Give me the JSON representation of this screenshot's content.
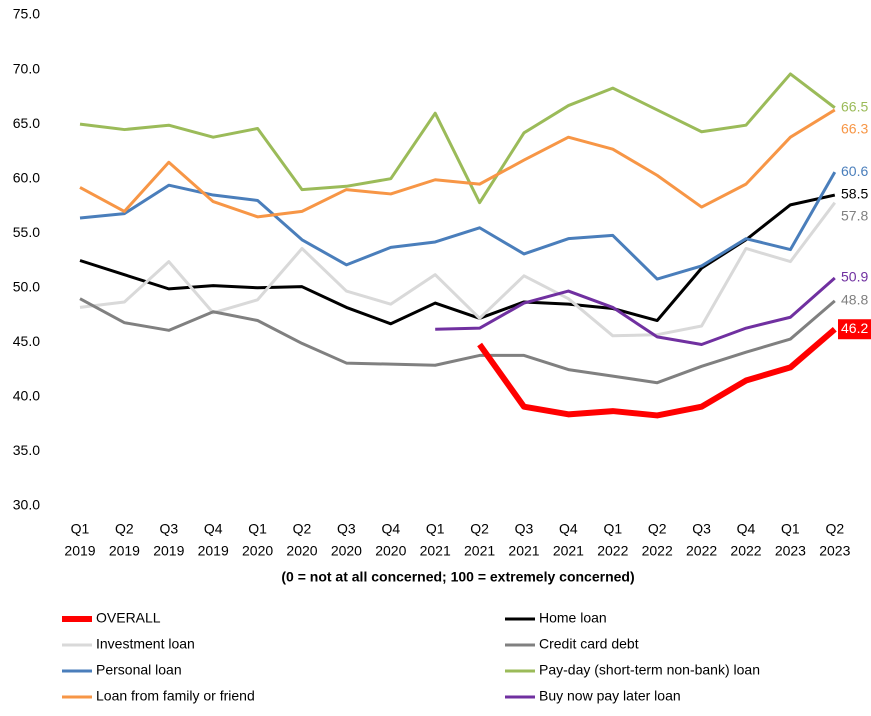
{
  "chart_data": {
    "type": "line",
    "x_label": "(0 = not at all concerned; 100 = extremely concerned)",
    "categories": [
      [
        "Q1",
        "2019"
      ],
      [
        "Q2",
        "2019"
      ],
      [
        "Q3",
        "2019"
      ],
      [
        "Q4",
        "2019"
      ],
      [
        "Q1",
        "2020"
      ],
      [
        "Q2",
        "2020"
      ],
      [
        "Q3",
        "2020"
      ],
      [
        "Q4",
        "2020"
      ],
      [
        "Q1",
        "2021"
      ],
      [
        "Q2",
        "2021"
      ],
      [
        "Q3",
        "2021"
      ],
      [
        "Q4",
        "2021"
      ],
      [
        "Q1",
        "2022"
      ],
      [
        "Q2",
        "2022"
      ],
      [
        "Q3",
        "2022"
      ],
      [
        "Q4",
        "2022"
      ],
      [
        "Q1",
        "2023"
      ],
      [
        "Q2",
        "2023"
      ]
    ],
    "ylim": [
      30,
      75
    ],
    "yticks": [
      {
        "value": 30,
        "label": "30.0"
      },
      {
        "value": 35,
        "label": "35.0"
      },
      {
        "value": 40,
        "label": "40.0"
      },
      {
        "value": 45,
        "label": "45.0"
      },
      {
        "value": 50,
        "label": "50.0"
      },
      {
        "value": 55,
        "label": "55.0"
      },
      {
        "value": 60,
        "label": "60.0"
      },
      {
        "value": 65,
        "label": "65.0"
      },
      {
        "value": 70,
        "label": "70.0"
      },
      {
        "value": 75,
        "label": "75.0"
      }
    ],
    "grid": false,
    "series": [
      {
        "name": "OVERALL",
        "color": "#ff0000",
        "width": 6,
        "values": [
          null,
          null,
          null,
          null,
          null,
          null,
          null,
          null,
          null,
          44.8,
          39.1,
          38.4,
          38.7,
          38.3,
          39.1,
          41.5,
          42.7,
          46.2
        ]
      },
      {
        "name": "Home loan",
        "color": "#000000",
        "width": 3,
        "values": [
          52.5,
          51.2,
          49.9,
          50.2,
          50.0,
          50.1,
          48.2,
          46.7,
          48.6,
          47.2,
          48.7,
          48.5,
          48.1,
          47.0,
          51.8,
          54.4,
          57.6,
          58.5
        ]
      },
      {
        "name": "Investment loan",
        "color": "#d9d9d9",
        "width": 3,
        "values": [
          48.2,
          48.7,
          52.4,
          47.7,
          48.9,
          53.6,
          49.7,
          48.5,
          51.2,
          47.2,
          51.1,
          49.0,
          45.6,
          45.7,
          46.5,
          53.6,
          52.4,
          57.8
        ]
      },
      {
        "name": "Credit card debt",
        "color": "#808080",
        "width": 3,
        "values": [
          49.0,
          46.8,
          46.1,
          47.8,
          47.0,
          44.9,
          43.1,
          43.0,
          42.9,
          43.8,
          43.8,
          42.5,
          41.9,
          41.3,
          42.8,
          44.1,
          45.3,
          48.8
        ]
      },
      {
        "name": "Personal loan",
        "color": "#4a7ebb",
        "width": 3,
        "values": [
          56.4,
          56.8,
          59.4,
          58.5,
          58.0,
          54.4,
          52.1,
          53.7,
          54.2,
          55.5,
          53.1,
          54.5,
          54.8,
          50.8,
          52.0,
          54.5,
          53.5,
          60.6
        ]
      },
      {
        "name": "Pay-day (short-term non-bank) loan",
        "color": "#9bbb59",
        "width": 3,
        "values": [
          65.0,
          64.5,
          64.9,
          63.8,
          64.6,
          59.0,
          59.3,
          60.0,
          66.0,
          57.8,
          64.2,
          66.7,
          68.3,
          66.3,
          64.3,
          64.9,
          69.6,
          66.5
        ]
      },
      {
        "name": "Loan from family or friend",
        "color": "#f79646",
        "width": 3,
        "values": [
          59.2,
          57.0,
          61.5,
          57.9,
          56.5,
          57.0,
          59.0,
          58.6,
          59.9,
          59.5,
          61.7,
          63.8,
          62.7,
          60.3,
          57.4,
          59.5,
          63.8,
          66.3
        ]
      },
      {
        "name": "Buy now pay later loan",
        "color": "#7030a0",
        "width": 3,
        "values": [
          null,
          null,
          null,
          null,
          null,
          null,
          null,
          null,
          46.2,
          46.3,
          48.6,
          49.7,
          48.2,
          45.5,
          44.8,
          46.3,
          47.3,
          50.9
        ]
      }
    ]
  }
}
